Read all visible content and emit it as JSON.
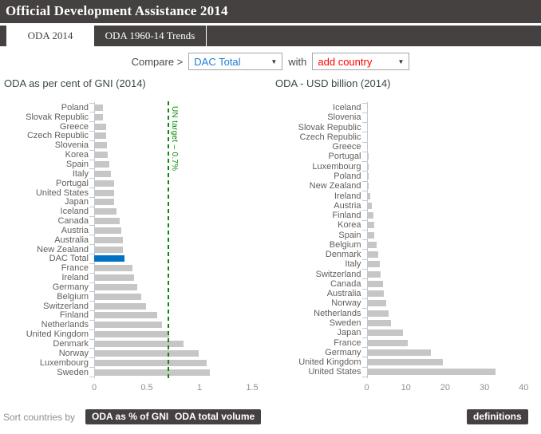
{
  "header": {
    "title": "Official Development Assistance 2014"
  },
  "tabs": [
    {
      "label": "ODA 2014",
      "active": true
    },
    {
      "label": "ODA 1960-14 Trends",
      "active": false
    }
  ],
  "compare": {
    "label": "Compare >",
    "primary_value": "DAC Total",
    "primary_color": "#1e7bd7",
    "conjunction": "with",
    "secondary_value": "add country",
    "secondary_color": "#ff0000"
  },
  "chart_data": [
    {
      "type": "bar",
      "orientation": "horizontal",
      "title": "ODA as per cent of GNI (2014)",
      "categories": [
        "Poland",
        "Slovak Republic",
        "Greece",
        "Czech Republic",
        "Slovenia",
        "Korea",
        "Spain",
        "Italy",
        "Portugal",
        "United States",
        "Japan",
        "Iceland",
        "Canada",
        "Austria",
        "Australia",
        "New Zealand",
        "DAC Total",
        "France",
        "Ireland",
        "Germany",
        "Belgium",
        "Switzerland",
        "Finland",
        "Netherlands",
        "United Kingdom",
        "Denmark",
        "Norway",
        "Luxembourg",
        "Sweden"
      ],
      "values": [
        0.08,
        0.08,
        0.11,
        0.11,
        0.12,
        0.13,
        0.14,
        0.16,
        0.19,
        0.19,
        0.19,
        0.21,
        0.24,
        0.26,
        0.27,
        0.27,
        0.29,
        0.36,
        0.38,
        0.41,
        0.45,
        0.49,
        0.6,
        0.64,
        0.71,
        0.85,
        0.99,
        1.07,
        1.1
      ],
      "xlim": [
        0,
        1.5
      ],
      "ticks": [
        0,
        0.5,
        1,
        1.5
      ],
      "bar_color": "#c6c6c6",
      "axis_color": "#bccbdb",
      "highlight": {
        "category": "DAC Total",
        "color": "#0072c6"
      },
      "annotation": {
        "label": "UN target – 0.7%",
        "value": 0.7,
        "color": "#0a8a0a"
      }
    },
    {
      "type": "bar",
      "orientation": "horizontal",
      "title": "ODA - USD billion (2014)",
      "categories": [
        "Iceland",
        "Slovenia",
        "Slovak Republic",
        "Czech Republic",
        "Greece",
        "Portugal",
        "Luxembourg",
        "Poland",
        "New Zealand",
        "Ireland",
        "Austria",
        "Finland",
        "Korea",
        "Spain",
        "Belgium",
        "Denmark",
        "Italy",
        "Switzerland",
        "Canada",
        "Australia",
        "Norway",
        "Netherlands",
        "Sweden",
        "Japan",
        "France",
        "Germany",
        "United Kingdom",
        "United States"
      ],
      "values": [
        0.04,
        0.06,
        0.08,
        0.21,
        0.25,
        0.42,
        0.43,
        0.44,
        0.51,
        0.82,
        1.23,
        1.63,
        1.86,
        1.88,
        2.45,
        3.0,
        3.34,
        3.52,
        4.2,
        4.38,
        5.02,
        5.57,
        6.23,
        9.27,
        10.37,
        16.25,
        19.39,
        32.73
      ],
      "xlim": [
        0,
        40
      ],
      "ticks": [
        0,
        10,
        20,
        30,
        40
      ],
      "bar_color": "#c6c6c6",
      "axis_color": "#bccbdb"
    }
  ],
  "footer": {
    "sort_label": "Sort countries by",
    "buttons": [
      "ODA as % of GNI",
      "ODA total volume"
    ],
    "definitions_label": "definitions"
  }
}
